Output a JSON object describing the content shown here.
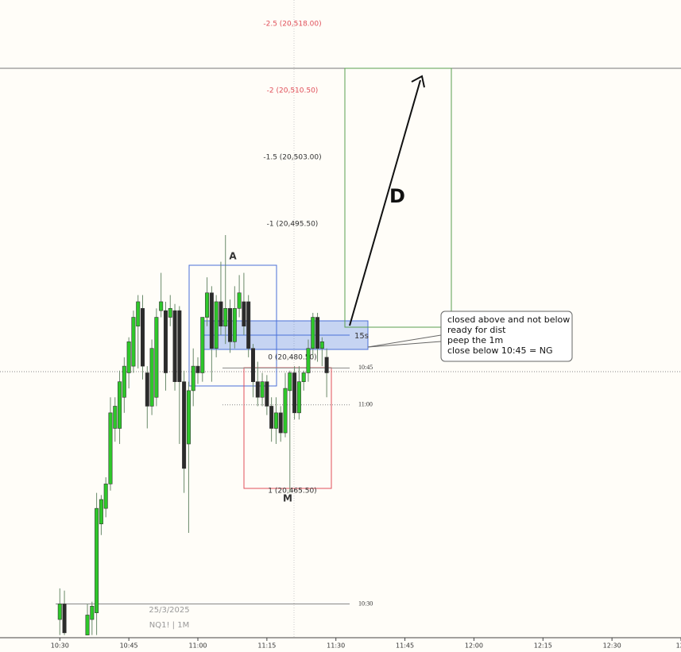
{
  "chart_data": {
    "type": "candlestick",
    "watermark": [
      "25/3/2025",
      "NQ1! | 1M"
    ],
    "x": [
      0,
      1,
      6,
      7,
      8,
      9,
      10,
      11,
      12,
      13,
      14,
      15,
      16,
      17,
      18,
      19,
      20,
      21,
      22,
      23,
      24,
      25,
      26,
      27,
      28,
      29,
      30,
      31,
      32,
      33,
      34,
      35,
      36,
      37,
      38,
      39,
      40,
      41,
      42,
      43,
      44,
      45,
      46,
      47,
      48,
      49,
      50,
      51,
      52,
      53,
      54,
      55,
      56,
      57,
      58
    ],
    "open": [
      20451.0,
      20452.75,
      20449.25,
      20451.0,
      20451.75,
      20461.75,
      20463.5,
      20466.25,
      20472.5,
      20472.5,
      20476.0,
      20478.75,
      20479.5,
      20484.0,
      20486.0,
      20478.75,
      20475.0,
      20476.0,
      20485.75,
      20485.75,
      20485.0,
      20485.75,
      20485.75,
      20477.75,
      20470.75,
      20476.75,
      20479.5,
      20478.75,
      20485.0,
      20487.75,
      20481.5,
      20486.75,
      20484.0,
      20486.0,
      20482.25,
      20486.0,
      20486.75,
      20486.75,
      20481.5,
      20477.75,
      20476.0,
      20477.75,
      20475.0,
      20472.5,
      20474.25,
      20472.0,
      20476.75,
      20478.75,
      20474.25,
      20477.75,
      20478.75,
      20481.5,
      20485.0,
      20481.5,
      20480.5
    ],
    "high": [
      20454.5,
      20454.25,
      20452.75,
      20453.0,
      20465.25,
      20465.0,
      20467.0,
      20476.0,
      20476.0,
      20479.0,
      20480.5,
      20482.75,
      20485.75,
      20487.5,
      20487.5,
      20479.5,
      20482.5,
      20486.0,
      20490.0,
      20486.75,
      20487.5,
      20486.5,
      20486.25,
      20479.0,
      20477.75,
      20481.5,
      20480.5,
      20485.0,
      20489.5,
      20488.5,
      20487.5,
      20491.25,
      20494.25,
      20487.0,
      20488.5,
      20489.75,
      20490.0,
      20487.5,
      20482.0,
      20480.0,
      20478.75,
      20478.5,
      20476.0,
      20476.0,
      20475.0,
      20478.75,
      20479.0,
      20479.5,
      20479.5,
      20479.0,
      20482.5,
      20485.5,
      20485.5,
      20482.75,
      20481.5
    ],
    "low": [
      20449.25,
      20449.25,
      20449.25,
      20449.25,
      20449.25,
      20460.5,
      20462.5,
      20465.5,
      20471.0,
      20470.75,
      20474.25,
      20477.0,
      20478.75,
      20479.25,
      20478.0,
      20472.5,
      20474.0,
      20475.0,
      20485.0,
      20476.75,
      20484.0,
      20476.75,
      20470.75,
      20465.25,
      20460.75,
      20475.0,
      20477.5,
      20477.75,
      20484.0,
      20477.75,
      20480.5,
      20483.0,
      20482.0,
      20481.0,
      20481.5,
      20485.0,
      20483.0,
      20480.5,
      20476.0,
      20475.0,
      20475.0,
      20474.0,
      20471.0,
      20470.75,
      20471.0,
      20471.5,
      20465.25,
      20473.5,
      20473.5,
      20476.75,
      20477.75,
      20480.5,
      20480.0,
      20479.5,
      20476.0
    ],
    "close": [
      20452.75,
      20449.5,
      20451.5,
      20452.5,
      20463.5,
      20464.5,
      20466.25,
      20474.25,
      20475.0,
      20477.75,
      20479.5,
      20482.25,
      20485.0,
      20486.75,
      20479.5,
      20475.0,
      20481.5,
      20485.0,
      20486.75,
      20478.75,
      20486.0,
      20477.75,
      20477.75,
      20468.0,
      20476.75,
      20479.5,
      20478.75,
      20485.0,
      20487.75,
      20481.5,
      20486.75,
      20484.0,
      20486.0,
      20482.25,
      20486.0,
      20487.75,
      20484.0,
      20481.5,
      20477.75,
      20476.0,
      20477.75,
      20475.0,
      20472.5,
      20474.25,
      20472.0,
      20477.0,
      20478.75,
      20474.25,
      20477.75,
      20478.75,
      20481.5,
      20485.0,
      20481.5,
      20482.25,
      20478.75
    ],
    "up_color": "#2ec82a",
    "down_color": "#2b2b2b",
    "xlim": [
      -13,
      135
    ],
    "ylim": [
      20448.95,
      20520.7
    ],
    "xticks": [
      {
        "value": 0,
        "label": "10:30"
      },
      {
        "value": 15,
        "label": "10:45"
      },
      {
        "value": 30,
        "label": "11:00"
      },
      {
        "value": 45,
        "label": "11:15"
      },
      {
        "value": 60,
        "label": "11:30"
      },
      {
        "value": 75,
        "label": "11:45"
      },
      {
        "value": 90,
        "label": "12:00"
      },
      {
        "value": 105,
        "label": "12:15"
      },
      {
        "value": 120,
        "label": "12:30"
      },
      {
        "value": 135,
        "label": "12:"
      }
    ],
    "fib_levels": [
      {
        "label": "-2.5 (20,518.00)",
        "value": 20518.0,
        "color": "#e0505a"
      },
      {
        "label": "-2 (20,510.50)",
        "value": 20510.5,
        "color": "#e0505a"
      },
      {
        "label": "-1.5 (20,503.00)",
        "value": 20503.0,
        "color": "#333333"
      },
      {
        "label": "-1 (20,495.50)",
        "value": 20495.5,
        "color": "#333333"
      },
      {
        "label": "0 (20,480.50)",
        "value": 20480.5,
        "color": "#333333"
      },
      {
        "label": "1 (20,465.50)",
        "value": 20465.5,
        "color": "#333333"
      }
    ],
    "session_levels": [
      {
        "label": "10:45",
        "value": 20479.3
      },
      {
        "label": "11:00",
        "value": 20475.15
      },
      {
        "label": "10:30",
        "value": 20452.75
      }
    ],
    "annotations": {
      "a": "A",
      "m": "M",
      "d": "D",
      "timeframe": "15s",
      "note": [
        "closed above and not below",
        "ready for dist",
        "peep the 1m",
        "close below 10:45 = NG"
      ]
    }
  }
}
